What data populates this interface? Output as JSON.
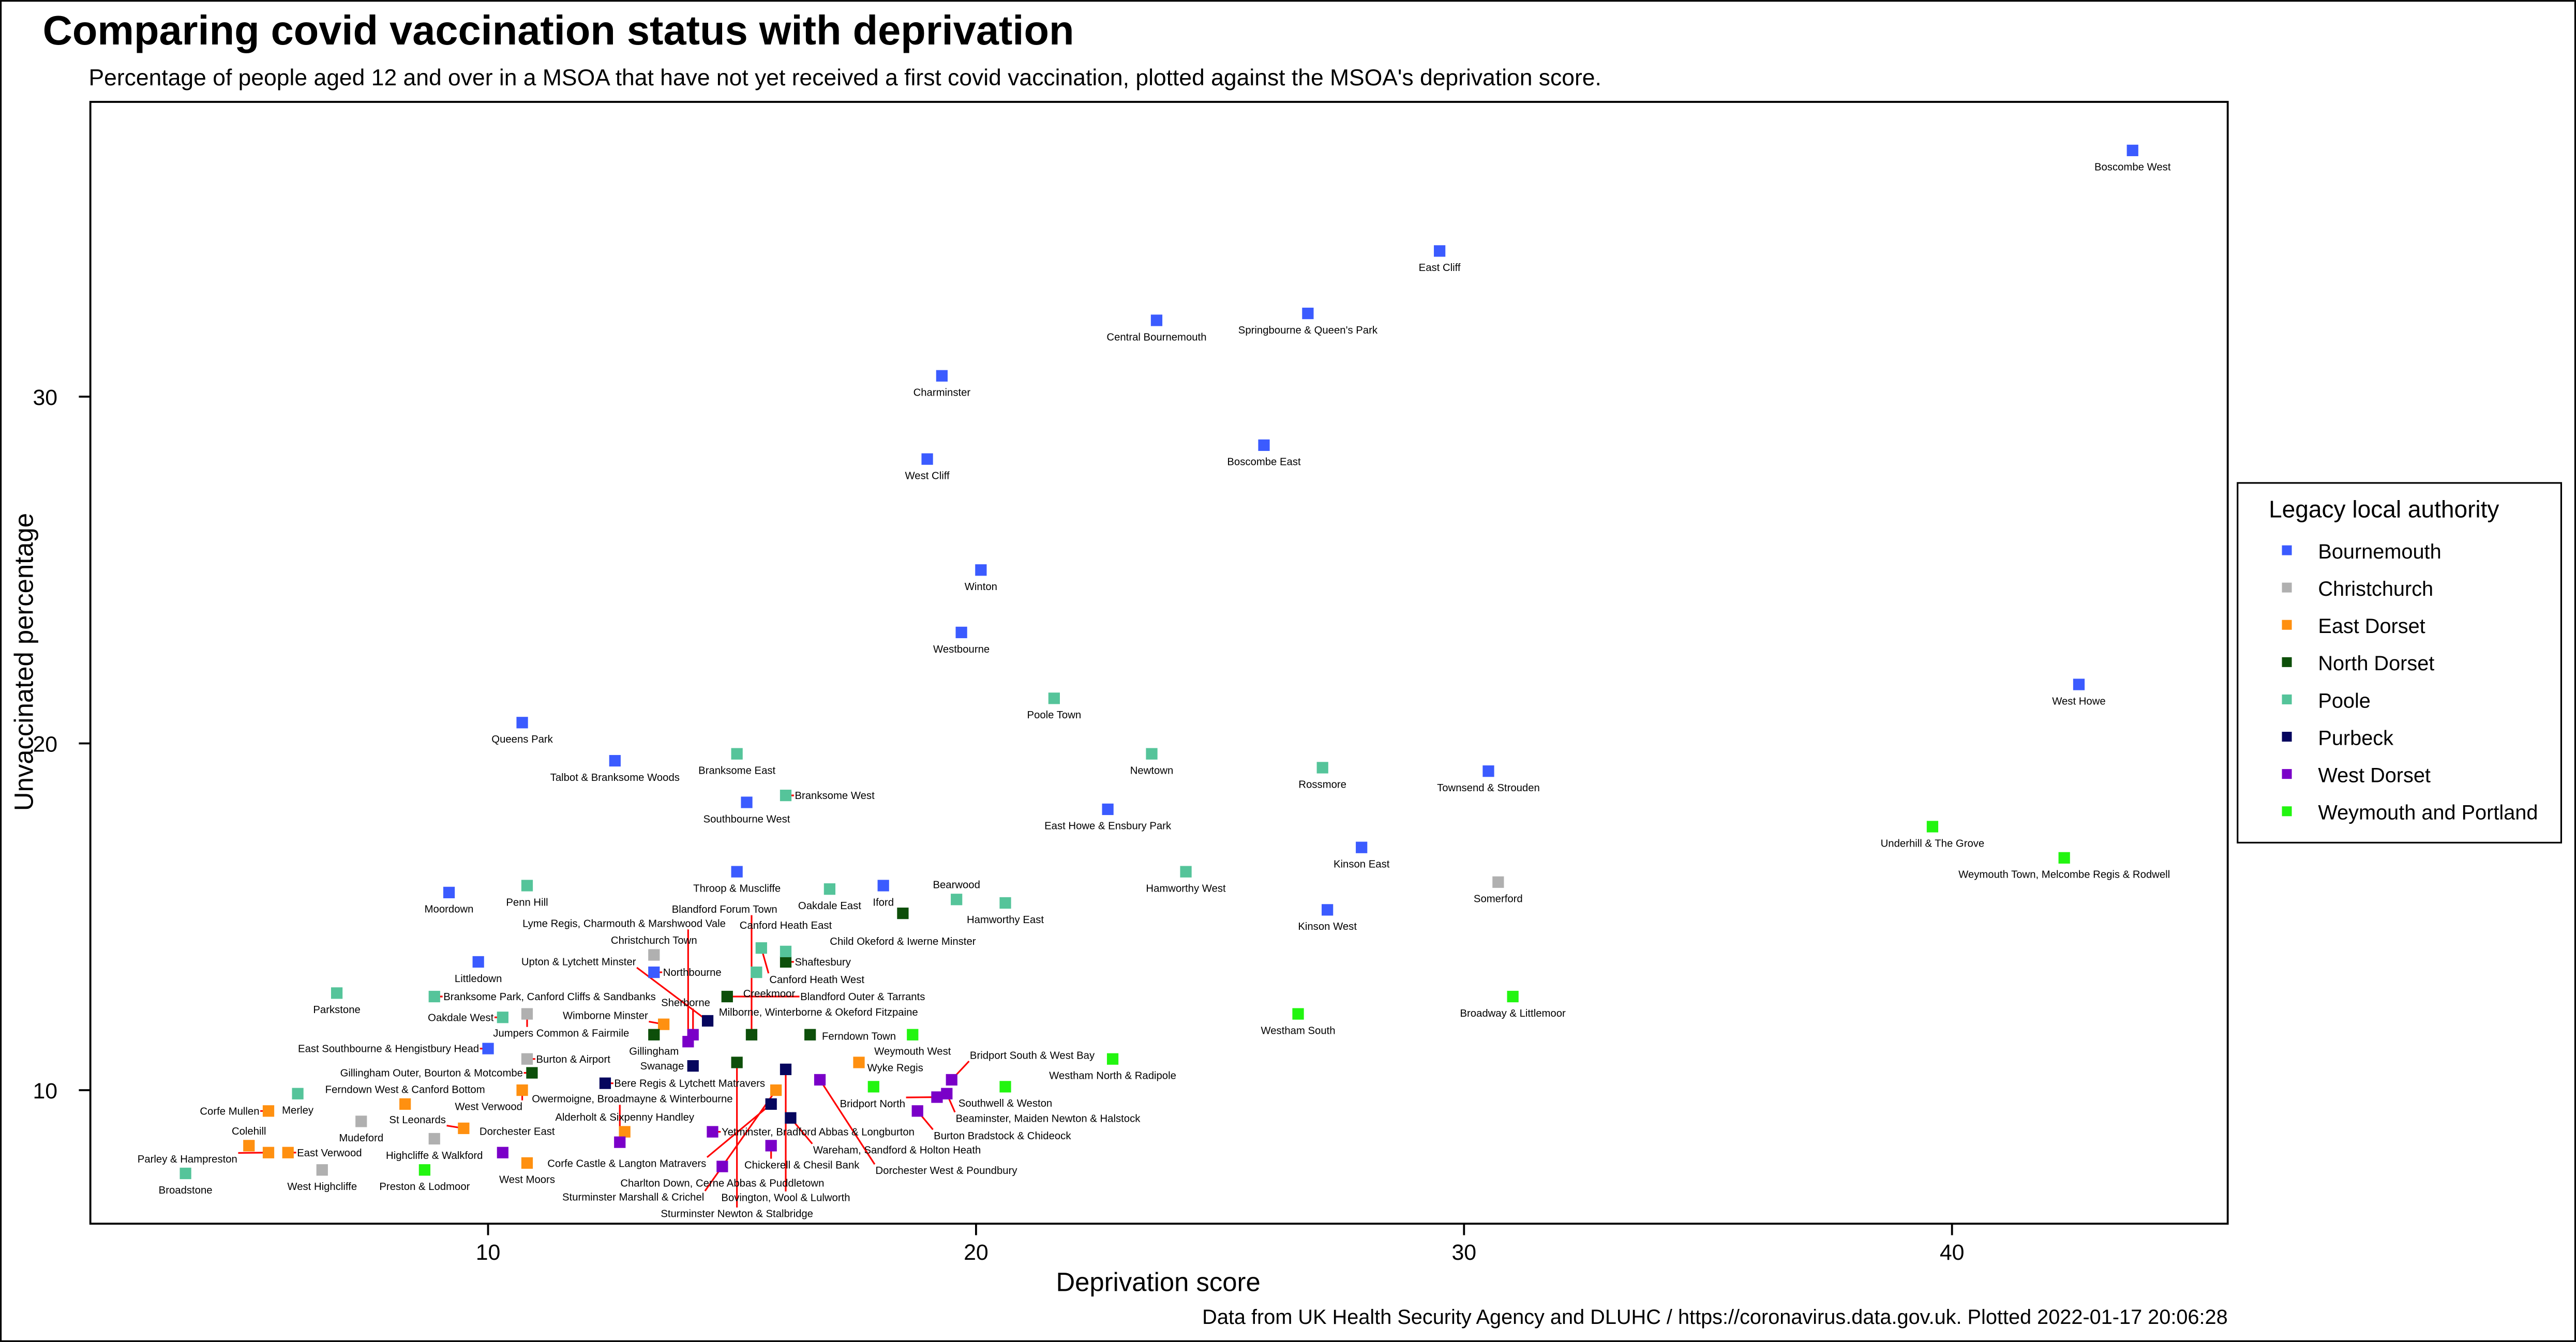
{
  "chart_data": {
    "type": "scatter",
    "title": "Comparing covid vaccination status with deprivation",
    "subtitle": "Percentage of people aged 12 and over in a MSOA that have not yet received a first covid vaccination, plotted against the MSOA's deprivation score.",
    "xlabel": "Deprivation score",
    "ylabel": "Unvaccinated percentage",
    "caption": "Data from UK Health Security Agency and DLUHC / https://coronavirus.data.gov.uk. Plotted 2022-01-17 20:06:28",
    "xlim": [
      1.85,
      45.65
    ],
    "ylim": [
      6.15,
      38.5
    ],
    "xticks": [
      10,
      20,
      30,
      40
    ],
    "yticks": [
      10,
      20,
      30
    ],
    "grid": false,
    "legend": {
      "title": "Legacy local authority",
      "placement": "right"
    },
    "series": [
      {
        "name": "Bournemouth",
        "color": "#3b5bff",
        "points": [
          {
            "label": "Boscombe West",
            "x": 43.7,
            "y": 37.1
          },
          {
            "label": "East Cliff",
            "x": 29.5,
            "y": 34.2
          },
          {
            "label": "Central Bournemouth",
            "x": 23.7,
            "y": 32.2
          },
          {
            "label": "Springbourne & Queen's Park",
            "x": 26.8,
            "y": 32.4
          },
          {
            "label": "Charminster",
            "x": 19.3,
            "y": 30.6
          },
          {
            "label": "Boscombe East",
            "x": 25.9,
            "y": 28.6
          },
          {
            "label": "West Cliff",
            "x": 19.0,
            "y": 28.2
          },
          {
            "label": "Winton",
            "x": 20.1,
            "y": 25.0
          },
          {
            "label": "Westbourne",
            "x": 19.7,
            "y": 23.2
          },
          {
            "label": "West Howe",
            "x": 42.6,
            "y": 21.7
          },
          {
            "label": "Queens Park",
            "x": 10.7,
            "y": 20.6
          },
          {
            "label": "Talbot & Branksome Woods",
            "x": 12.6,
            "y": 19.5
          },
          {
            "label": "Townsend & Strouden",
            "x": 30.5,
            "y": 19.2
          },
          {
            "label": "Southbourne West",
            "x": 15.3,
            "y": 18.3
          },
          {
            "label": "East Howe & Ensbury Park",
            "x": 22.7,
            "y": 18.1
          },
          {
            "label": "Kinson East",
            "x": 27.9,
            "y": 17.0
          },
          {
            "label": "Throop & Muscliffe",
            "x": 15.1,
            "y": 16.3
          },
          {
            "label": "Iford",
            "x": 18.1,
            "y": 15.9
          },
          {
            "label": "Moordown",
            "x": 9.2,
            "y": 15.7
          },
          {
            "label": "Kinson West",
            "x": 27.2,
            "y": 15.2
          },
          {
            "label": "Littledown",
            "x": 9.8,
            "y": 13.7
          },
          {
            "label": "Northbourne",
            "x": 13.4,
            "y": 13.4
          },
          {
            "label": "East Southbourne & Hengistbury Head",
            "x": 10.0,
            "y": 11.2
          }
        ]
      },
      {
        "name": "Christchurch",
        "color": "#b0b0b0",
        "points": [
          {
            "label": "Somerford",
            "x": 30.7,
            "y": 16.0
          },
          {
            "label": "Christchurch Town",
            "x": 13.4,
            "y": 13.9
          },
          {
            "label": "Jumpers Common & Fairmile",
            "x": 10.8,
            "y": 12.2
          },
          {
            "label": "Burton & Airport",
            "x": 10.8,
            "y": 10.9
          },
          {
            "label": "Mudeford",
            "x": 7.4,
            "y": 9.1
          },
          {
            "label": "Highcliffe & Walkford",
            "x": 8.9,
            "y": 8.6
          },
          {
            "label": "West Highcliffe",
            "x": 6.6,
            "y": 7.7
          }
        ]
      },
      {
        "name": "East Dorset",
        "color": "#ff9010",
        "points": [
          {
            "label": "Wimborne Minster",
            "x": 13.6,
            "y": 11.9
          },
          {
            "label": "West Verwood",
            "x": 10.7,
            "y": 10.0
          },
          {
            "label": "Ferndown West & Canford Bottom",
            "x": 8.3,
            "y": 9.6
          },
          {
            "label": "Corfe Mullen",
            "x": 5.5,
            "y": 9.4
          },
          {
            "label": "St Leonards",
            "x": 9.5,
            "y": 8.9
          },
          {
            "label": "Colehill",
            "x": 5.1,
            "y": 8.4
          },
          {
            "label": "Parley & Hampreston",
            "x": 5.5,
            "y": 8.2
          },
          {
            "label": "East Verwood",
            "x": 5.9,
            "y": 8.2
          },
          {
            "label": "West Moors",
            "x": 10.8,
            "y": 7.9
          },
          {
            "label": "Alderholt & Sixpenny Handley",
            "x": 12.8,
            "y": 8.8
          },
          {
            "label": "Sturminster Marshall & Crichel",
            "x": 15.9,
            "y": 10.0
          },
          {
            "label": "Ferndown Town",
            "x": 17.6,
            "y": 10.8
          }
        ]
      },
      {
        "name": "North Dorset",
        "color": "#0d4f0a",
        "points": [
          {
            "label": "Child Okeford & Iwerne Minster",
            "x": 18.5,
            "y": 15.1
          },
          {
            "label": "Shaftesbury",
            "x": 16.1,
            "y": 13.7
          },
          {
            "label": "Blandford Outer & Tarrants",
            "x": 14.9,
            "y": 12.7
          },
          {
            "label": "Milborne, Winterborne & Okeford Fitzpaine",
            "x": 16.6,
            "y": 11.6
          },
          {
            "label": "Blandford Forum Town",
            "x": 15.4,
            "y": 11.6
          },
          {
            "label": "Gillingham",
            "x": 13.4,
            "y": 11.6
          },
          {
            "label": "Gillingham Outer, Bourton & Motcombe",
            "x": 10.9,
            "y": 10.5
          },
          {
            "label": "Sturminster Newton & Stalbridge",
            "x": 15.1,
            "y": 10.8
          }
        ]
      },
      {
        "name": "Poole",
        "color": "#55c49a",
        "points": [
          {
            "label": "Poole Town",
            "x": 21.6,
            "y": 21.3
          },
          {
            "label": "Newtown",
            "x": 23.6,
            "y": 19.7
          },
          {
            "label": "Branksome East",
            "x": 15.1,
            "y": 19.7
          },
          {
            "label": "Rossmore",
            "x": 27.1,
            "y": 19.3
          },
          {
            "label": "Branksome West",
            "x": 16.1,
            "y": 18.5
          },
          {
            "label": "Hamworthy West",
            "x": 24.3,
            "y": 16.3
          },
          {
            "label": "Oakdale East",
            "x": 17.0,
            "y": 15.8
          },
          {
            "label": "Penn Hill",
            "x": 10.8,
            "y": 15.9
          },
          {
            "label": "Bearwood",
            "x": 19.6,
            "y": 15.5
          },
          {
            "label": "Hamworthy East",
            "x": 20.6,
            "y": 15.4
          },
          {
            "label": "Canford Heath West",
            "x": 15.6,
            "y": 14.1
          },
          {
            "label": "Canford Heath East",
            "x": 16.1,
            "y": 14.0
          },
          {
            "label": "Creekmoor",
            "x": 15.5,
            "y": 13.4
          },
          {
            "label": "Parkstone",
            "x": 6.9,
            "y": 12.8
          },
          {
            "label": "Branksome Park, Canford Cliffs & Sandbanks",
            "x": 8.9,
            "y": 12.7
          },
          {
            "label": "Oakdale West",
            "x": 10.3,
            "y": 12.1
          },
          {
            "label": "Merley",
            "x": 6.1,
            "y": 9.9
          },
          {
            "label": "Broadstone",
            "x": 3.8,
            "y": 7.6
          }
        ]
      },
      {
        "name": "Purbeck",
        "color": "#06065e",
        "points": [
          {
            "label": "Upton & Lytchett Minster",
            "x": 14.5,
            "y": 12.0
          },
          {
            "label": "Bere Regis & Lytchett Matravers",
            "x": 12.4,
            "y": 10.2
          },
          {
            "label": "Swanage",
            "x": 14.2,
            "y": 10.7
          },
          {
            "label": "Bovington, Wool & Lulworth",
            "x": 16.1,
            "y": 10.6
          },
          {
            "label": "Corfe Castle & Langton Matravers",
            "x": 15.8,
            "y": 9.6
          },
          {
            "label": "Wareham, Sandford & Holton Heath",
            "x": 16.2,
            "y": 9.2
          }
        ]
      },
      {
        "name": "West Dorset",
        "color": "#7a00c8",
        "points": [
          {
            "label": "Sherborne",
            "x": 14.2,
            "y": 11.6
          },
          {
            "label": "Lyme Regis, Charmouth & Marshwood Vale",
            "x": 14.1,
            "y": 11.4
          },
          {
            "label": "Dorchester West & Poundbury",
            "x": 16.8,
            "y": 10.3
          },
          {
            "label": "Bridport South & West Bay",
            "x": 19.5,
            "y": 10.3
          },
          {
            "label": "Beaminster, Maiden Newton & Halstock",
            "x": 19.4,
            "y": 9.9
          },
          {
            "label": "Bridport North",
            "x": 19.2,
            "y": 9.8
          },
          {
            "label": "Burton Bradstock & Chideock",
            "x": 18.8,
            "y": 9.4
          },
          {
            "label": "Yetminster, Bradford Abbas & Longburton",
            "x": 14.6,
            "y": 8.8
          },
          {
            "label": "Owermoigne, Broadmayne & Winterbourne",
            "x": 12.7,
            "y": 8.5
          },
          {
            "label": "Chickerell & Chesil Bank",
            "x": 15.8,
            "y": 8.4
          },
          {
            "label": "Charlton Down, Cerne Abbas & Puddletown",
            "x": 14.8,
            "y": 7.8
          },
          {
            "label": "Dorchester East",
            "x": 10.3,
            "y": 8.2
          }
        ]
      },
      {
        "name": "Weymouth and Portland",
        "color": "#22f510",
        "points": [
          {
            "label": "Underhill & The Grove",
            "x": 39.6,
            "y": 17.6
          },
          {
            "label": "Weymouth Town, Melcombe Regis & Rodwell",
            "x": 42.3,
            "y": 16.7
          },
          {
            "label": "Broadway & Littlemoor",
            "x": 31.0,
            "y": 12.7
          },
          {
            "label": "Westham South",
            "x": 26.6,
            "y": 12.2
          },
          {
            "label": "Westham North & Radipole",
            "x": 22.8,
            "y": 10.9
          },
          {
            "label": "Weymouth West",
            "x": 18.7,
            "y": 11.6
          },
          {
            "label": "Wyke Regis",
            "x": 17.9,
            "y": 10.1
          },
          {
            "label": "Southwell & Weston",
            "x": 20.6,
            "y": 10.1
          },
          {
            "label": "Preston & Lodmoor",
            "x": 8.7,
            "y": 7.7
          }
        ]
      }
    ]
  }
}
